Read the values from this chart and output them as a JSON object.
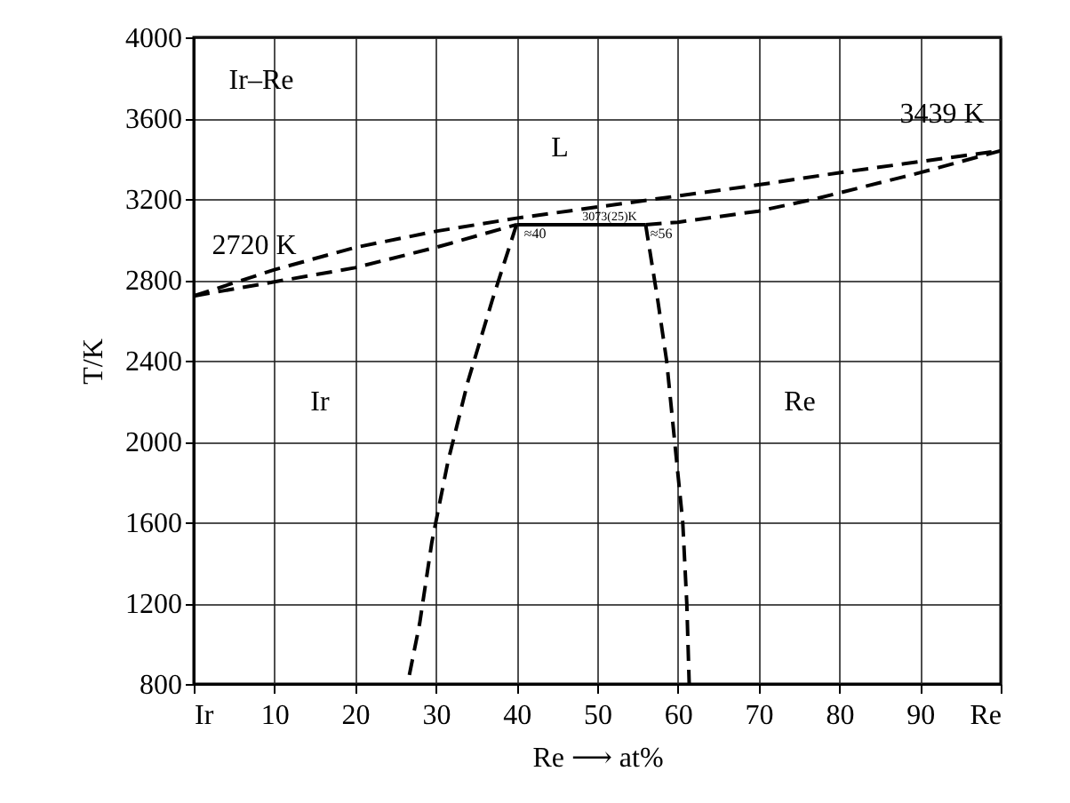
{
  "chart_data": {
    "type": "line",
    "xlabel": "Re ⟶ at%",
    "ylabel": "T/K",
    "xlim": [
      0,
      100
    ],
    "ylim": [
      800,
      4000
    ],
    "xticks": [
      {
        "value": 0,
        "label": "Ir"
      },
      10,
      20,
      30,
      40,
      50,
      60,
      70,
      80,
      90,
      {
        "value": 100,
        "label": "Re"
      }
    ],
    "yticks": [
      800,
      1200,
      1600,
      2000,
      2400,
      2800,
      3200,
      3600,
      4000
    ],
    "grid": true,
    "marker": "none",
    "line_style": "dashed",
    "series": [
      {
        "color": "#000000",
        "x": [
          0,
          10,
          20,
          30,
          40,
          50,
          60,
          70,
          80,
          90,
          100
        ],
        "values": [
          2720,
          2850,
          2960,
          3040,
          3105,
          3160,
          3215,
          3270,
          3330,
          3385,
          3439
        ]
      },
      {
        "color": "#000000",
        "x": [
          0,
          10,
          20,
          30,
          40
        ],
        "values": [
          2720,
          2790,
          2860,
          2960,
          3073
        ]
      },
      {
        "color": "#000000",
        "x": [
          56,
          60,
          70,
          77,
          90,
          100
        ],
        "values": [
          3073,
          3085,
          3140,
          3200,
          3330,
          3439
        ]
      },
      {
        "color": "#000000",
        "line_style": "solid",
        "x": [
          40,
          56
        ],
        "values": [
          3073,
          3073
        ]
      },
      {
        "color": "#000000",
        "x": [
          40,
          37,
          34,
          31.5,
          29.5,
          28,
          26.5
        ],
        "values": [
          3073,
          2700,
          2300,
          1900,
          1500,
          1100,
          800
        ]
      },
      {
        "color": "#000000",
        "x": [
          56,
          57.5,
          58.6,
          59.6,
          60.6,
          61.1,
          61.4
        ],
        "values": [
          3073,
          2700,
          2400,
          2000,
          1600,
          1200,
          800
        ]
      }
    ],
    "annotations": [
      "Ir–Re",
      "L",
      "Ir",
      "Re",
      "2720 K",
      "3439 K",
      "3073(25)K",
      "≈40",
      "≈56"
    ]
  }
}
